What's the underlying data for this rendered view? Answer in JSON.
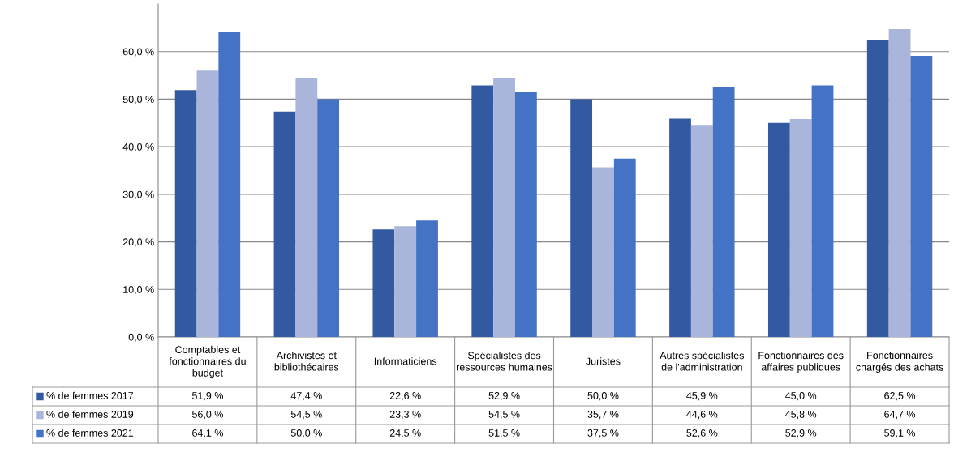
{
  "chart_data": {
    "type": "bar",
    "categories": [
      "Comptables et fonctionnaires du budget",
      "Archivistes et bibliothécaires",
      "Informaticiens",
      "Spécialistes des ressources humaines",
      "Juristes",
      "Autres spécialistes de l'administration",
      "Fonctionnaires des affaires publiques",
      "Fonctionnaires chargés des achats"
    ],
    "series": [
      {
        "name": "% de femmes 2017",
        "color": "#335aa1",
        "values": [
          51.9,
          47.4,
          22.6,
          52.9,
          50.0,
          45.9,
          45.0,
          62.5
        ],
        "value_labels": [
          "51,9 %",
          "47,4 %",
          "22,6 %",
          "52,9 %",
          "50,0 %",
          "45,9 %",
          "45,0 %",
          "62,5 %"
        ]
      },
      {
        "name": "% de femmes 2019",
        "color": "#a9b5da",
        "values": [
          56.0,
          54.5,
          23.3,
          54.5,
          35.7,
          44.6,
          45.8,
          64.7
        ],
        "value_labels": [
          "56,0 %",
          "54,5 %",
          "23,3 %",
          "54,5 %",
          "35,7 %",
          "44,6 %",
          "45,8 %",
          "64,7 %"
        ]
      },
      {
        "name": "% de femmes 2021",
        "color": "#4472c4",
        "values": [
          64.1,
          50.0,
          24.5,
          51.5,
          37.5,
          52.6,
          52.9,
          59.1
        ],
        "value_labels": [
          "64,1 %",
          "50,0 %",
          "24,5 %",
          "51,5 %",
          "37,5 %",
          "52,6 %",
          "52,9 %",
          "59,1 %"
        ]
      }
    ],
    "ylim": [
      0,
      70
    ],
    "yticks": [
      {
        "value": 0,
        "label": "0,0 %"
      },
      {
        "value": 10,
        "label": "10,0 %"
      },
      {
        "value": 20,
        "label": "20,0 %"
      },
      {
        "value": 30,
        "label": "30,0 %"
      },
      {
        "value": 40,
        "label": "40,0 %"
      },
      {
        "value": 50,
        "label": "50,0 %"
      },
      {
        "value": 60,
        "label": "60,0 %"
      }
    ],
    "grid": "y",
    "legend": "bottom left"
  }
}
